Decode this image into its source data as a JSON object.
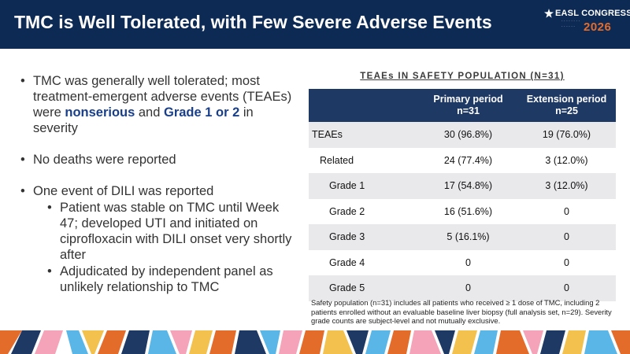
{
  "header": {
    "title": "TMC is Well Tolerated, with Few Severe Adverse Events",
    "logo": {
      "name": "EASL CONGRESS",
      "year": "2026"
    }
  },
  "bullets": {
    "b1_prefix": "TMC was generally well tolerated; most treatment-emergent adverse events (TEAEs) were ",
    "b1_bold1": "nonserious",
    "b1_mid": " and ",
    "b1_bold2": "Grade 1 or 2",
    "b1_suffix": " in severity",
    "b2": "No deaths were reported",
    "b3": "One event of DILI was reported",
    "b3_sub1": "Patient was stable on TMC until Week 47; developed UTI and initiated on ciprofloxacin with DILI onset very shortly after",
    "b3_sub2": "Adjudicated by independent panel as unlikely relationship to TMC"
  },
  "table": {
    "title": "TEAEs IN SAFETY POPULATION (N=31)",
    "headers": {
      "primary": "Primary period",
      "primary_n": "n=31",
      "extension": "Extension period",
      "extension_n": "n=25"
    },
    "rows": [
      {
        "label": "TEAEs",
        "primary": "30 (96.8%)",
        "extension": "19 (76.0%)"
      },
      {
        "label": "Related",
        "primary": "24 (77.4%)",
        "extension": "3 (12.0%)"
      },
      {
        "label": "Grade 1",
        "primary": "17 (54.8%)",
        "extension": "3 (12.0%)"
      },
      {
        "label": "Grade 2",
        "primary": "16 (51.6%)",
        "extension": "0"
      },
      {
        "label": "Grade 3",
        "primary": "5 (16.1%)",
        "extension": "0"
      },
      {
        "label": "Grade 4",
        "primary": "0",
        "extension": "0"
      },
      {
        "label": "Grade 5",
        "primary": "0",
        "extension": "0"
      }
    ]
  },
  "footnote": "Safety population (n=31) includes all patients who received ≥ 1 dose of TMC, including 2 patients enrolled without an evaluable baseline liver biopsy (full analysis set, n=29). Severity grade counts are subject-level and not mutually exclusive.",
  "colors": {
    "header_bg": "#0d2a55",
    "table_header_bg": "#1f3965",
    "emphasis": "#1a3f8a",
    "row_alt": "#e9e9ec",
    "band_palette": [
      "#e36c2a",
      "#f4a3b8",
      "#5bb6e8",
      "#1f3965",
      "#f2c14e",
      "#ffffff"
    ]
  }
}
